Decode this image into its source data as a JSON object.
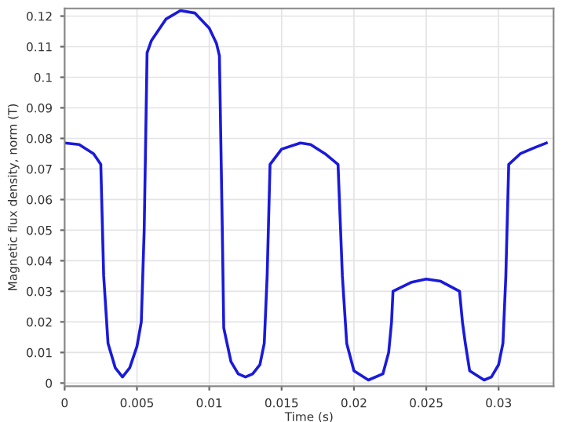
{
  "chart_data": {
    "type": "line",
    "xlabel": "Time (s)",
    "ylabel": "Magnetic flux density, norm (T)",
    "series": [
      {
        "color": "#1a1adc",
        "x": [
          0,
          0.001,
          0.002,
          0.0025,
          0.0027,
          0.003,
          0.0035,
          0.004,
          0.0045,
          0.005,
          0.0053,
          0.0055,
          0.0057,
          0.006,
          0.007,
          0.008,
          0.009,
          0.01,
          0.0105,
          0.0107,
          0.0109,
          0.011,
          0.0115,
          0.012,
          0.0125,
          0.013,
          0.0135,
          0.0138,
          0.014,
          0.0142,
          0.015,
          0.0163,
          0.017,
          0.018,
          0.0189,
          0.0192,
          0.0195,
          0.02,
          0.021,
          0.022,
          0.0224,
          0.0226,
          0.0227,
          0.024,
          0.025,
          0.026,
          0.0273,
          0.0275,
          0.0277,
          0.028,
          0.029,
          0.0295,
          0.03,
          0.0303,
          0.0305,
          0.0307,
          0.0315,
          0.0325,
          0.0333
        ],
        "values": [
          0.0785,
          0.078,
          0.075,
          0.0715,
          0.035,
          0.013,
          0.005,
          0.002,
          0.005,
          0.012,
          0.02,
          0.05,
          0.108,
          0.112,
          0.119,
          0.1218,
          0.121,
          0.116,
          0.111,
          0.107,
          0.05,
          0.018,
          0.007,
          0.003,
          0.002,
          0.003,
          0.006,
          0.013,
          0.035,
          0.0715,
          0.0765,
          0.0785,
          0.078,
          0.075,
          0.0715,
          0.035,
          0.013,
          0.004,
          0.001,
          0.003,
          0.01,
          0.02,
          0.03,
          0.033,
          0.034,
          0.0333,
          0.03,
          0.02,
          0.013,
          0.004,
          0.001,
          0.002,
          0.006,
          0.013,
          0.035,
          0.0715,
          0.075,
          0.077,
          0.0785
        ]
      }
    ],
    "xlim": [
      0,
      0.0338
    ],
    "ylim": [
      -0.001,
      0.1225
    ],
    "xticks": [
      0,
      0.005,
      0.01,
      0.015,
      0.02,
      0.025,
      0.03
    ],
    "yticks": [
      0,
      0.01,
      0.02,
      0.03,
      0.04,
      0.05,
      0.06,
      0.07,
      0.08,
      0.09,
      0.1,
      0.11,
      0.12
    ],
    "grid": true,
    "legend": false,
    "marker": "none",
    "line_style": "solid"
  }
}
